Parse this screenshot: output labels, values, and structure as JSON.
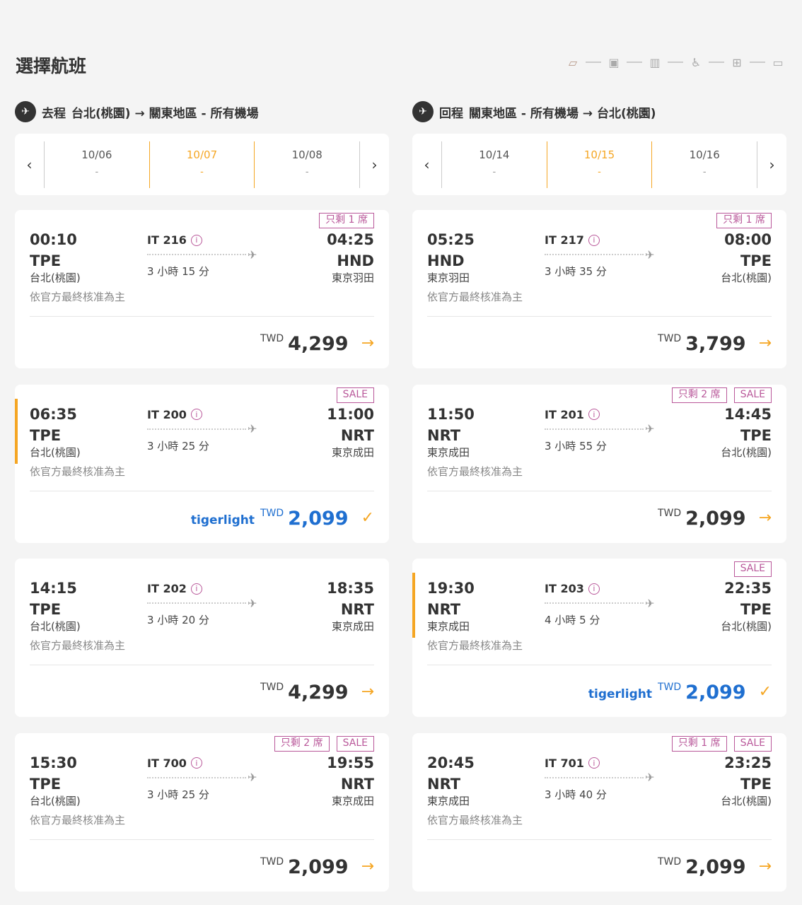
{
  "page_title": "選擇航班",
  "steps": [
    {
      "icon": "flight-ticket-icon"
    },
    {
      "icon": "passenger-icon"
    },
    {
      "icon": "baggage-icon"
    },
    {
      "icon": "seat-icon"
    },
    {
      "icon": "grid-icon"
    },
    {
      "icon": "payment-card-icon"
    }
  ],
  "colors": {
    "accent": "#f5a623",
    "badge": "#b9589a",
    "tigerlight": "#1f6fd0"
  },
  "outbound": {
    "label": "去程",
    "route": "台北(桃園) → 關東地區 - 所有機場",
    "dates": [
      {
        "date": "10/06",
        "price": "-"
      },
      {
        "date": "10/07",
        "price": "-",
        "selected": true
      },
      {
        "date": "10/08",
        "price": "-"
      }
    ],
    "flights": [
      {
        "dep_time": "00:10",
        "dep_code": "TPE",
        "dep_city": "台北(桃園)",
        "note": "依官方最終核准為主",
        "flight_no": "IT 216",
        "duration": "3 小時 15 分",
        "arr_time": "04:25",
        "arr_code": "HND",
        "arr_city": "東京羽田",
        "badges": [
          "只剩 1 席"
        ],
        "currency": "TWD",
        "price": "4,299",
        "selected": false,
        "brand": ""
      },
      {
        "dep_time": "06:35",
        "dep_code": "TPE",
        "dep_city": "台北(桃園)",
        "note": "依官方最終核准為主",
        "flight_no": "IT 200",
        "duration": "3 小時 25 分",
        "arr_time": "11:00",
        "arr_code": "NRT",
        "arr_city": "東京成田",
        "badges": [
          "SALE"
        ],
        "currency": "TWD",
        "price": "2,099",
        "selected": true,
        "brand": "tigerlight"
      },
      {
        "dep_time": "14:15",
        "dep_code": "TPE",
        "dep_city": "台北(桃園)",
        "note": "依官方最終核准為主",
        "flight_no": "IT 202",
        "duration": "3 小時 20 分",
        "arr_time": "18:35",
        "arr_code": "NRT",
        "arr_city": "東京成田",
        "badges": [],
        "currency": "TWD",
        "price": "4,299",
        "selected": false,
        "brand": ""
      },
      {
        "dep_time": "15:30",
        "dep_code": "TPE",
        "dep_city": "台北(桃園)",
        "note": "依官方最終核准為主",
        "flight_no": "IT 700",
        "duration": "3 小時 25 分",
        "arr_time": "19:55",
        "arr_code": "NRT",
        "arr_city": "東京成田",
        "badges": [
          "只剩 2 席",
          "SALE"
        ],
        "currency": "TWD",
        "price": "2,099",
        "selected": false,
        "brand": ""
      }
    ]
  },
  "return": {
    "label": "回程",
    "route": "關東地區 - 所有機場 → 台北(桃園)",
    "dates": [
      {
        "date": "10/14",
        "price": "-"
      },
      {
        "date": "10/15",
        "price": "-",
        "selected": true
      },
      {
        "date": "10/16",
        "price": "-"
      }
    ],
    "flights": [
      {
        "dep_time": "05:25",
        "dep_code": "HND",
        "dep_city": "東京羽田",
        "note": "依官方最終核准為主",
        "flight_no": "IT 217",
        "duration": "3 小時 35 分",
        "arr_time": "08:00",
        "arr_code": "TPE",
        "arr_city": "台北(桃園)",
        "badges": [
          "只剩 1 席"
        ],
        "currency": "TWD",
        "price": "3,799",
        "selected": false,
        "brand": ""
      },
      {
        "dep_time": "11:50",
        "dep_code": "NRT",
        "dep_city": "東京成田",
        "note": "依官方最終核准為主",
        "flight_no": "IT 201",
        "duration": "3 小時 55 分",
        "arr_time": "14:45",
        "arr_code": "TPE",
        "arr_city": "台北(桃園)",
        "badges": [
          "只剩 2 席",
          "SALE"
        ],
        "currency": "TWD",
        "price": "2,099",
        "selected": false,
        "brand": ""
      },
      {
        "dep_time": "19:30",
        "dep_code": "NRT",
        "dep_city": "東京成田",
        "note": "依官方最終核准為主",
        "flight_no": "IT 203",
        "duration": "4 小時 5 分",
        "arr_time": "22:35",
        "arr_code": "TPE",
        "arr_city": "台北(桃園)",
        "badges": [
          "SALE"
        ],
        "currency": "TWD",
        "price": "2,099",
        "selected": true,
        "brand": "tigerlight"
      },
      {
        "dep_time": "20:45",
        "dep_code": "NRT",
        "dep_city": "東京成田",
        "note": "依官方最終核准為主",
        "flight_no": "IT 701",
        "duration": "3 小時 40 分",
        "arr_time": "23:25",
        "arr_code": "TPE",
        "arr_city": "台北(桃園)",
        "badges": [
          "只剩 1 席",
          "SALE"
        ],
        "currency": "TWD",
        "price": "2,099",
        "selected": false,
        "brand": ""
      }
    ]
  }
}
